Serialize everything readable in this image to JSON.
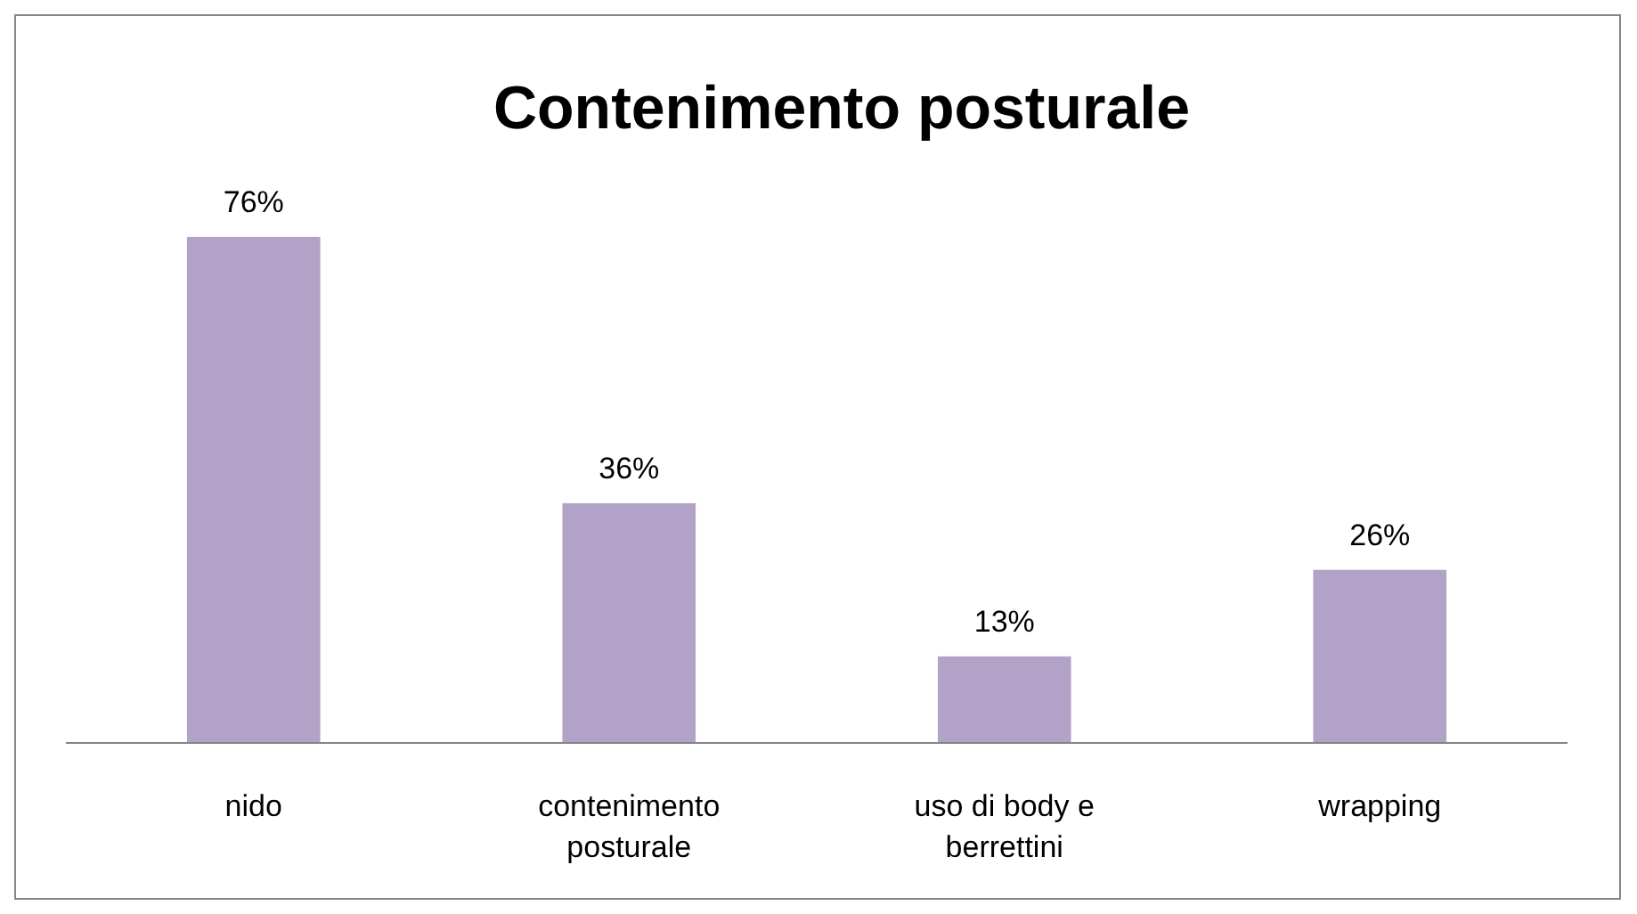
{
  "chart_data": {
    "type": "bar",
    "title": "Contenimento posturale",
    "categories": [
      "nido",
      "contenimento posturale",
      "uso di body e berrettini",
      "wrapping"
    ],
    "values": [
      76,
      36,
      13,
      26
    ],
    "value_labels": [
      "76%",
      "36%",
      "13%",
      "26%"
    ],
    "color": "#b3a2c7"
  }
}
